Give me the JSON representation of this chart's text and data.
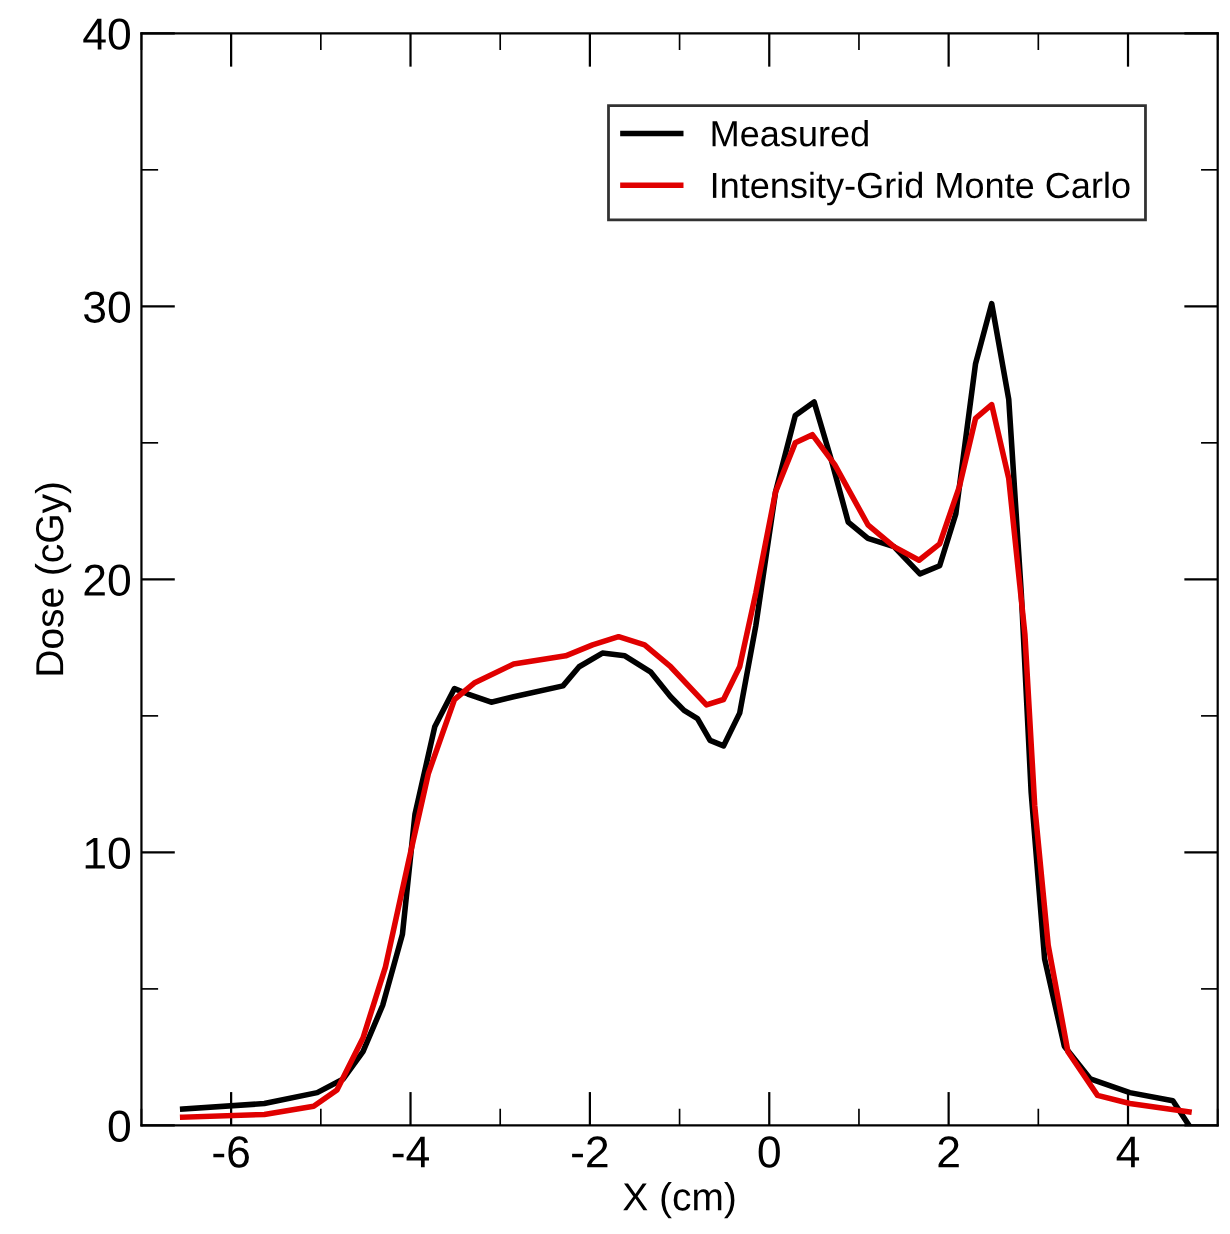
{
  "chart_data": {
    "type": "line",
    "xlabel": "X (cm)",
    "ylabel": "Dose (cGy)",
    "xlim": [
      -7,
      5
    ],
    "ylim": [
      0,
      40
    ],
    "xticks": [
      {
        "value": -7,
        "label": null
      },
      -6,
      {
        "value": -5,
        "label": null
      },
      -4,
      {
        "value": -3,
        "label": null
      },
      -2,
      {
        "value": -1,
        "label": null
      },
      0,
      {
        "value": 1,
        "label": null
      },
      2,
      {
        "value": 3,
        "label": null
      },
      4,
      {
        "value": 5,
        "label": null
      }
    ],
    "yticks": [
      0,
      {
        "value": 5,
        "label": null
      },
      10,
      {
        "value": 15,
        "label": null
      },
      20,
      {
        "value": 25,
        "label": null
      },
      30,
      {
        "value": 35,
        "label": null
      },
      40
    ],
    "grid": false,
    "legend": "top right",
    "marker": "none",
    "line_style": "solid",
    "series": [
      {
        "name": "Measured",
        "color": "#000000",
        "x": [
          -6.54,
          -5.63,
          -5.04,
          -4.75,
          -4.53,
          -4.31,
          -4.09,
          -3.95,
          -3.73,
          -3.51,
          -3.36,
          -3.1,
          -2.85,
          -2.3,
          -2.12,
          -1.86,
          -1.61,
          -1.32,
          -1.1,
          -0.95,
          -0.8,
          -0.66,
          -0.51,
          -0.33,
          -0.15,
          0.07,
          0.29,
          0.5,
          0.69,
          0.88,
          1.1,
          1.39,
          1.68,
          1.9,
          2.08,
          2.3,
          2.48,
          2.67,
          2.81,
          2.92,
          3.07,
          3.29,
          3.58,
          4.02,
          4.5,
          4.68
        ],
        "values": [
          0.6,
          0.8,
          1.2,
          1.7,
          2.7,
          4.4,
          7.0,
          11.4,
          14.6,
          16.0,
          15.8,
          15.5,
          15.7,
          16.1,
          16.8,
          17.3,
          17.2,
          16.6,
          15.7,
          15.2,
          14.9,
          14.1,
          13.9,
          15.1,
          18.3,
          23.2,
          26.0,
          26.5,
          24.4,
          22.1,
          21.5,
          21.2,
          20.2,
          20.5,
          22.4,
          27.9,
          30.1,
          26.6,
          19.5,
          12.2,
          6.1,
          2.9,
          1.7,
          1.2,
          0.9,
          0.0
        ]
      },
      {
        "name": "Intensity-Grid Monte Carlo",
        "color": "#e00000",
        "x": [
          -6.54,
          -5.63,
          -5.08,
          -4.82,
          -4.53,
          -4.28,
          -4.02,
          -3.8,
          -3.51,
          -3.29,
          -2.85,
          -2.27,
          -1.97,
          -1.68,
          -1.39,
          -1.1,
          -0.7,
          -0.51,
          -0.33,
          -0.15,
          0.07,
          0.29,
          0.48,
          0.73,
          1.1,
          1.39,
          1.67,
          1.9,
          2.12,
          2.3,
          2.48,
          2.67,
          2.85,
          2.96,
          3.11,
          3.33,
          3.66,
          4.02,
          4.68
        ],
        "values": [
          0.3,
          0.4,
          0.7,
          1.3,
          3.2,
          5.8,
          9.7,
          12.9,
          15.6,
          16.2,
          16.9,
          17.2,
          17.6,
          17.9,
          17.6,
          16.8,
          15.4,
          15.6,
          16.8,
          19.5,
          23.2,
          25.0,
          25.3,
          24.2,
          22.0,
          21.2,
          20.7,
          21.3,
          23.4,
          25.9,
          26.4,
          23.7,
          18.0,
          11.7,
          6.6,
          2.7,
          1.1,
          0.8,
          0.5
        ]
      }
    ]
  }
}
